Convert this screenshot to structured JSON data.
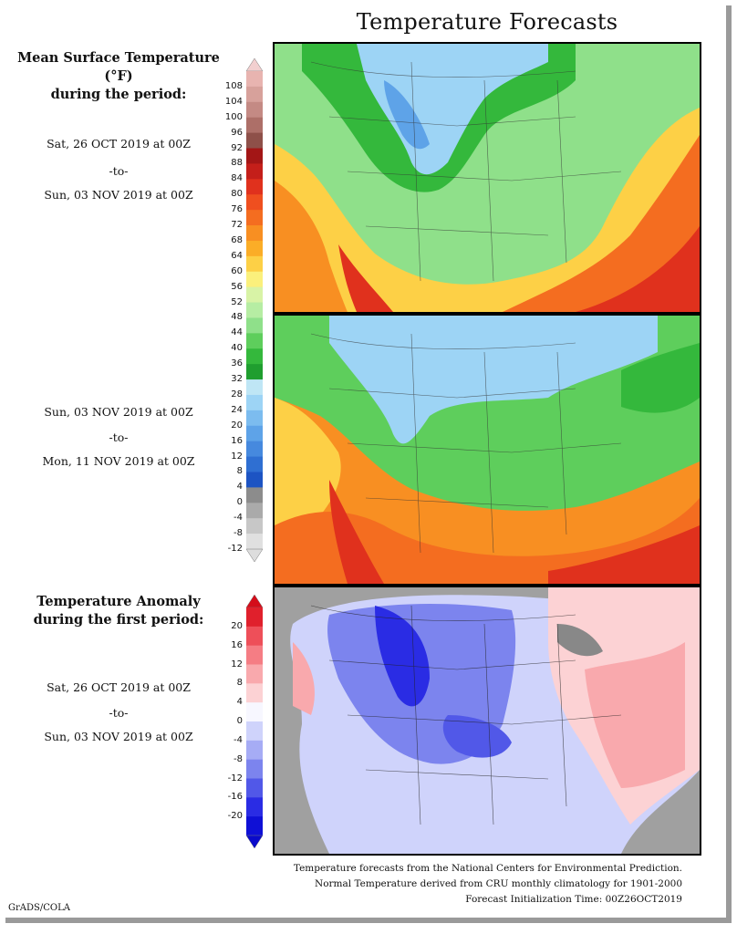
{
  "page": {
    "title": "Temperature Forecasts",
    "credit": "GrADS/COLA"
  },
  "mean_temp": {
    "heading_line1": "Mean Surface Temperature (°F)",
    "heading_line2": "during the period:",
    "period1": {
      "start": "Sat, 26 OCT 2019 at 00Z",
      "sep": "-to-",
      "end": "Sun, 03 NOV 2019 at 00Z"
    },
    "period2": {
      "start": "Sun, 03 NOV 2019 at 00Z",
      "sep": "-to-",
      "end": "Mon, 11 NOV 2019 at 00Z"
    },
    "colorbar": {
      "ticks": [
        "108",
        "104",
        "100",
        "96",
        "92",
        "88",
        "84",
        "80",
        "76",
        "72",
        "68",
        "64",
        "60",
        "56",
        "52",
        "48",
        "44",
        "40",
        "36",
        "32",
        "28",
        "24",
        "20",
        "16",
        "12",
        "8",
        "4",
        "0",
        "-4",
        "-8",
        "-12"
      ],
      "colors": [
        "#e8b4b0",
        "#d7a19b",
        "#c48a84",
        "#ad6f68",
        "#8e5049",
        "#a31616",
        "#c41f1a",
        "#e0311d",
        "#ef4f1f",
        "#f46d20",
        "#f88f22",
        "#fbad27",
        "#fdd046",
        "#fbf07c",
        "#d8f3a6",
        "#b6eda3",
        "#8fe08a",
        "#5ece5c",
        "#34b83c",
        "#1f9e2f",
        "#bfe6f5",
        "#9dd4f5",
        "#7cbcef",
        "#5ea3e8",
        "#4689de",
        "#2f6fd2",
        "#1d54c3",
        "#8c8c8c",
        "#aaaaaa",
        "#c7c7c7",
        "#e0e0e0"
      ]
    }
  },
  "anomaly": {
    "heading_line1": "Temperature Anomaly",
    "heading_line2": "during the first period:",
    "start": "Sat, 26 OCT 2019 at 00Z",
    "sep": "-to-",
    "end": "Sun, 03 NOV 2019 at 00Z",
    "colorbar": {
      "ticks": [
        "20",
        "16",
        "12",
        "8",
        "4",
        "0",
        "-4",
        "-8",
        "-12",
        "-16",
        "-20"
      ],
      "colors": [
        "#e0202c",
        "#ee4f59",
        "#f57d84",
        "#f9a9ad",
        "#fcd2d4",
        "#f7f7ff",
        "#cfd3fb",
        "#a6acf5",
        "#7c84ee",
        "#5158e8",
        "#2a2ce4",
        "#0f10d6"
      ]
    }
  },
  "footer": {
    "line1": "Temperature forecasts from the National Centers for Environmental Prediction.",
    "line2": "Normal Temperature derived from CRU monthly climatology for 1901-2000",
    "line3": "Forecast Initialization Time: 00Z26OCT2019"
  }
}
